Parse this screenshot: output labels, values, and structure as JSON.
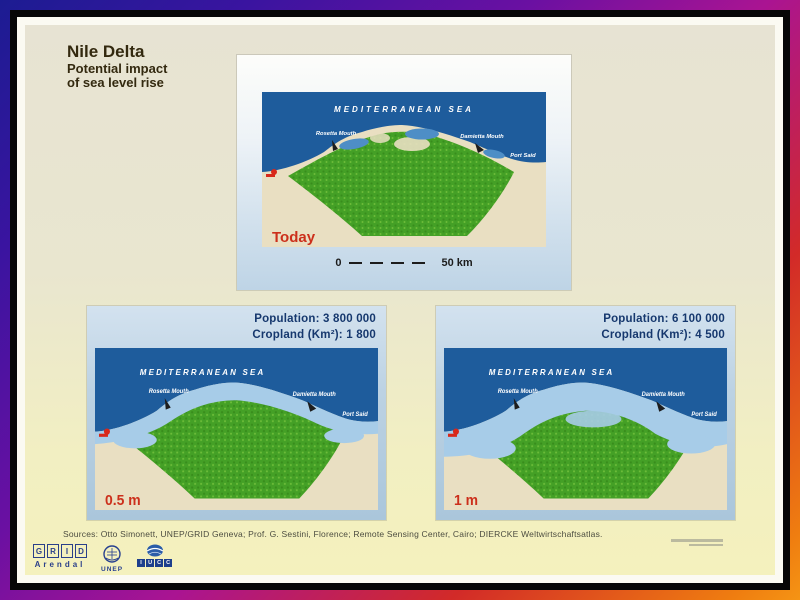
{
  "title": {
    "line1": "Nile Delta",
    "line2": "Potential impact",
    "line3": "of sea level rise"
  },
  "map_labels": {
    "sea": "MEDITERRANEAN SEA",
    "rosetta": "Rosetta Mouth",
    "damietta": "Damietta Mouth",
    "port_said": "Port Said"
  },
  "panels": {
    "today": {
      "label": "Today",
      "scale_zero": "0",
      "scale_km": "50 km"
    },
    "half": {
      "label": "0.5 m",
      "population": "Population: 3 800 000",
      "cropland": "Cropland (Km²): 1 800"
    },
    "one": {
      "label": "1 m",
      "population": "Population: 6 100 000",
      "cropland": "Cropland (Km²): 4 500"
    }
  },
  "sources": "Sources: Otto Simonett, UNEP/GRID Geneva; Prof. G. Sestini, Florence; Remote Sensing Center, Cairo; DIERCKE Weltwirtschaftsatlas.",
  "logos": {
    "grid_letters": [
      "G",
      "R",
      "I",
      "D"
    ],
    "grid_name": "Arendal",
    "unep": "UNEP",
    "iucc_letters": [
      "I",
      "U",
      "C",
      "C"
    ]
  },
  "colors": {
    "sea": "#1e5c9c",
    "flood": "#a7cce8",
    "delta_green": "#44a026",
    "sand": "#e9dfc2",
    "lagoon": "#4e8ec6",
    "accent_red": "#cc2f1b",
    "stats_text": "#16386e",
    "frame_gradient": [
      "#1c1c92",
      "#6a10a2",
      "#aa1492",
      "#d22a28",
      "#ef7d10"
    ]
  }
}
